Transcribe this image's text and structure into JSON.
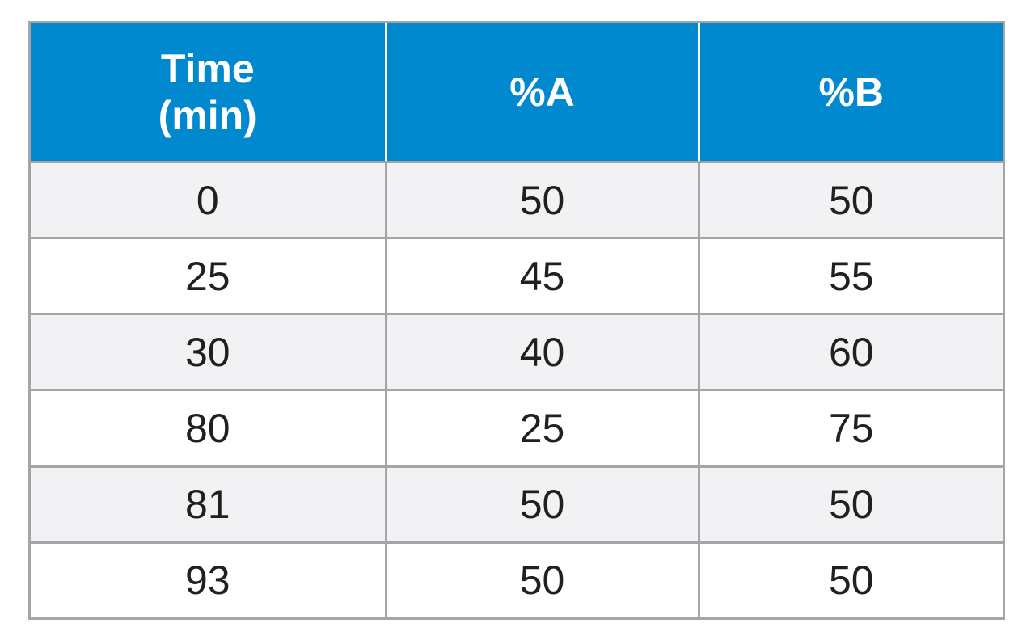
{
  "colors": {
    "header_background": "#0089cf",
    "header_text": "#ffffff",
    "row_band": "#f2f2f4",
    "border": "#a3a5a7",
    "body_text": "#231f20"
  },
  "table": {
    "headers": {
      "time_line1": "Time",
      "time_line2": "(min)",
      "a": "%A",
      "b": "%B"
    },
    "rows": [
      [
        "0",
        "50",
        "50"
      ],
      [
        "25",
        "45",
        "55"
      ],
      [
        "30",
        "40",
        "60"
      ],
      [
        "80",
        "25",
        "75"
      ],
      [
        "81",
        "50",
        "50"
      ],
      [
        "93",
        "50",
        "50"
      ]
    ]
  }
}
